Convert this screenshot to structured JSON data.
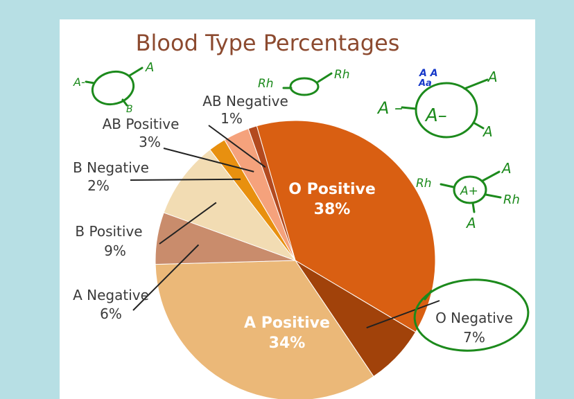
{
  "chart_data": {
    "type": "pie",
    "title": "Blood Type Percentages",
    "slices": [
      {
        "name": "O Positive",
        "value": 38,
        "label": "38%",
        "color": "#d95f12"
      },
      {
        "name": "O Negative",
        "value": 7,
        "label": "7%",
        "color": "#a1420a"
      },
      {
        "name": "A Positive",
        "value": 34,
        "label": "34%",
        "color": "#ebb878"
      },
      {
        "name": "A Negative",
        "value": 6,
        "label": "6%",
        "color": "#c98c6c"
      },
      {
        "name": "B Positive",
        "value": 9,
        "label": "9%",
        "color": "#f2dcb3"
      },
      {
        "name": "B Negative",
        "value": 2,
        "label": "2%",
        "color": "#e8900f"
      },
      {
        "name": "AB Positive",
        "value": 3,
        "label": "3%",
        "color": "#f5a27c"
      },
      {
        "name": "AB Negative",
        "value": 1,
        "label": "1%",
        "color": "#b34a1f"
      }
    ]
  },
  "annotations": {
    "color": "#1c8a1c",
    "blue_color": "#1638c9",
    "ink_labels": {
      "a1_a": "A",
      "a1_b": "B",
      "a1_left": "A-",
      "rh1_left": "Rh",
      "rh1_right": "Rh",
      "aa_top": "A A",
      "aa_sub": "Aa",
      "aneg_in": "A–",
      "aneg_left": "A –",
      "aneg_r1": "A",
      "aneg_r2": "A",
      "apos_left": "Rh",
      "apos_in": "A+",
      "apos_r1": "A",
      "apos_r2": "Rh",
      "apos_bottom": "A"
    }
  }
}
